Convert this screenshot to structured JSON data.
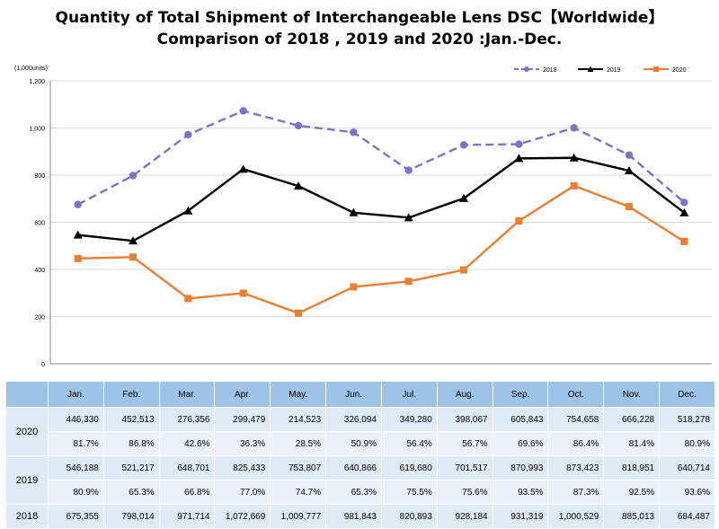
{
  "title_line1": "Quantity of Total Shipment of Interchangeable Lens DSC【Worldwide】",
  "title_line2": "Comparison of 2018 , 2019 and 2020 :Jan.-Dec.",
  "chart_data": {
    "type": "line",
    "title": "Quantity of Total Shipment of Interchangeable Lens DSC【Worldwide】 Comparison of 2018 , 2019 and 2020 :Jan.-Dec.",
    "ylabel": "(1,000units)",
    "xlabel": "",
    "ylim": [
      0,
      1200
    ],
    "yticks": [
      0,
      200,
      400,
      600,
      800,
      1000,
      1200
    ],
    "ytick_labels": [
      "0",
      "200",
      "400",
      "600",
      "800",
      "1,000",
      "1,200"
    ],
    "grid": true,
    "legend": "top-right",
    "categories": [
      "Jan.",
      "Feb.",
      "Mar.",
      "Apr.",
      "May.",
      "Jun.",
      "Jul.",
      "Aug.",
      "Sep.",
      "Oct.",
      "Nov.",
      "Dec."
    ],
    "series": [
      {
        "name": "2018",
        "color": "#7b72c9",
        "style": "dashed",
        "marker": "circle",
        "values": [
          675.355,
          798.014,
          971.714,
          1072.669,
          1009.777,
          981.843,
          820.893,
          928.184,
          931.319,
          1000.529,
          885.013,
          684.487
        ]
      },
      {
        "name": "2019",
        "color": "#000000",
        "style": "solid",
        "marker": "triangle",
        "values": [
          546.188,
          521.217,
          648.701,
          825.433,
          753.807,
          640.866,
          619.68,
          701.517,
          870.993,
          873.423,
          818.951,
          640.714
        ]
      },
      {
        "name": "2020",
        "color": "#ed7d31",
        "style": "solid",
        "marker": "square",
        "values": [
          446.33,
          452.513,
          276.356,
          299.479,
          214.523,
          326.094,
          349.28,
          398.067,
          605.843,
          754.658,
          666.228,
          518.278
        ]
      }
    ]
  },
  "table": {
    "columns": [
      "Jan.",
      "Feb.",
      "Mar.",
      "Apr.",
      "May.",
      "Jun.",
      "Jul.",
      "Aug.",
      "Sep.",
      "Oct.",
      "Nov.",
      "Dec."
    ],
    "rows": [
      {
        "year": "2020",
        "values": [
          "446,330",
          "452,513",
          "276,356",
          "299,479",
          "214,523",
          "326,094",
          "349,280",
          "398,067",
          "605,843",
          "754,658",
          "666,228",
          "518,278"
        ],
        "percents": [
          "81.7%",
          "86.8%",
          "42.6%",
          "36.3%",
          "28.5%",
          "50.9%",
          "56.4%",
          "56.7%",
          "69.6%",
          "86.4%",
          "81.4%",
          "80.9%"
        ]
      },
      {
        "year": "2019",
        "values": [
          "546,188",
          "521,217",
          "648,701",
          "825,433",
          "753,807",
          "640,866",
          "619,680",
          "701,517",
          "870,993",
          "873,423",
          "818,951",
          "640,714"
        ],
        "percents": [
          "80.9%",
          "65.3%",
          "66.8%",
          "77.0%",
          "74.7%",
          "65.3%",
          "75.5%",
          "75.6%",
          "93.5%",
          "87.3%",
          "92.5%",
          "93.6%"
        ]
      },
      {
        "year": "2018",
        "values": [
          "675,355",
          "798,014",
          "971,714",
          "1,072,669",
          "1,009,777",
          "981,843",
          "820,893",
          "928,184",
          "931,319",
          "1,000,529",
          "885,013",
          "684,487"
        ]
      }
    ]
  }
}
